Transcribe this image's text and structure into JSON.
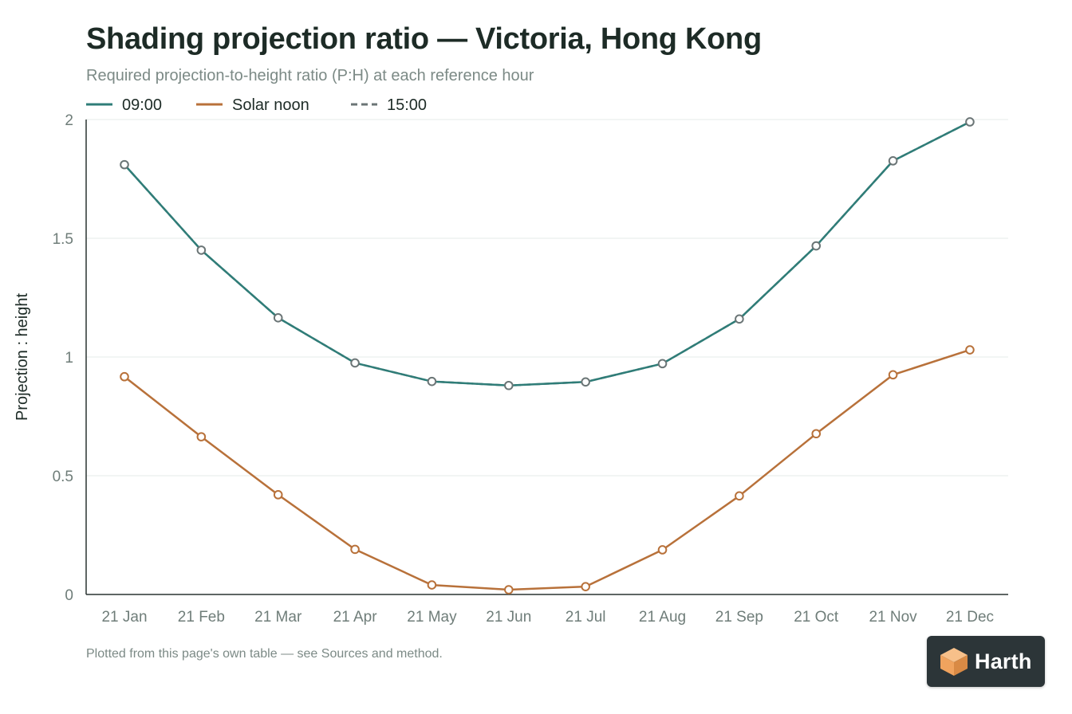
{
  "chart_data": {
    "type": "line",
    "title": "Shading projection ratio — Victoria, Hong Kong",
    "subtitle": "Required projection-to-height ratio (P:H) at each reference hour",
    "xlabel": "",
    "ylabel": "Projection : height",
    "categories": [
      "21 Jan",
      "21 Feb",
      "21 Mar",
      "21 Apr",
      "21 May",
      "21 Jun",
      "21 Jul",
      "21 Aug",
      "21 Sep",
      "21 Oct",
      "21 Nov",
      "21 Dec"
    ],
    "ylim": [
      0,
      2
    ],
    "yticks": [
      0,
      0.5,
      1,
      1.5,
      2
    ],
    "ytick_labels": [
      "0",
      "0.5",
      "1",
      "1.5",
      "2"
    ],
    "grid": true,
    "legend_position": "top-left",
    "series": [
      {
        "name": "09:00",
        "color": "#2f7d78",
        "dash": "solid",
        "values": [
          1.81,
          1.45,
          1.165,
          0.975,
          0.897,
          0.88,
          0.895,
          0.972,
          1.16,
          1.468,
          1.826,
          1.99
        ]
      },
      {
        "name": "Solar noon",
        "color": "#b8713a",
        "dash": "solid",
        "values": [
          0.917,
          0.664,
          0.42,
          0.19,
          0.04,
          0.02,
          0.033,
          0.188,
          0.415,
          0.677,
          0.925,
          1.03
        ]
      },
      {
        "name": "15:00",
        "color": "#6b7576",
        "dash": "dashed",
        "values": [
          1.81,
          1.45,
          1.165,
          0.975,
          0.897,
          0.88,
          0.895,
          0.972,
          1.16,
          1.468,
          1.826,
          1.99
        ]
      }
    ]
  },
  "footnote": "Plotted from this page's own table — see Sources and method.",
  "brand": {
    "name": "Harth",
    "icon": "cube-logo-icon",
    "badge_color": "#2c3538",
    "icon_color": "#f0a35e"
  }
}
